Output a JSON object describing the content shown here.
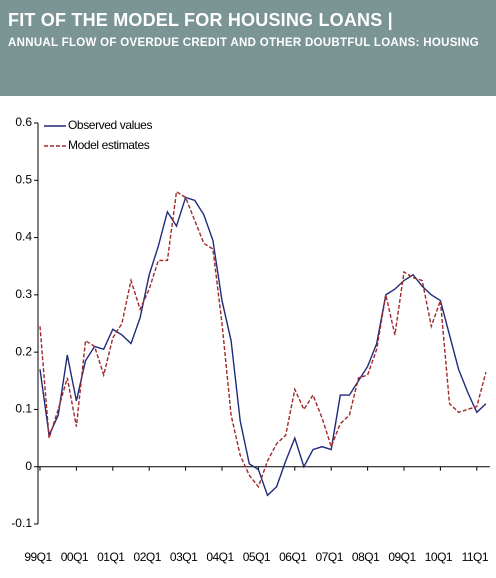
{
  "chart_data": {
    "type": "line",
    "title": "FIT OF THE MODEL FOR HOUSING LOANS |",
    "subtitle": "ANNUAL FLOW OF OVERDUE CREDIT AND OTHER DOUBTFUL LOANS: HOUSING",
    "categories": [
      "99Q1",
      null,
      null,
      null,
      "00Q1",
      null,
      null,
      null,
      "01Q1",
      null,
      null,
      null,
      "02Q1",
      null,
      null,
      null,
      "03Q1",
      null,
      null,
      null,
      "04Q1",
      null,
      null,
      null,
      "05Q1",
      null,
      null,
      null,
      "06Q1",
      null,
      null,
      null,
      "07Q1",
      null,
      null,
      null,
      "08Q1",
      null,
      null,
      null,
      "09Q1",
      null,
      null,
      null,
      "10Q1",
      null,
      null,
      null,
      "11Q1",
      null
    ],
    "series": [
      {
        "name": "Observed values",
        "color": "#1f2a7a",
        "dashed": false,
        "values": [
          0.17,
          0.055,
          0.09,
          0.195,
          0.115,
          0.185,
          0.21,
          0.205,
          0.24,
          0.23,
          0.215,
          0.26,
          0.335,
          0.385,
          0.445,
          0.42,
          0.47,
          0.465,
          0.44,
          0.395,
          0.29,
          0.22,
          0.08,
          0.005,
          -0.005,
          -0.05,
          -0.035,
          0.01,
          0.05,
          0.0,
          0.03,
          0.035,
          0.03,
          0.125,
          0.125,
          0.15,
          0.175,
          0.215,
          0.3,
          0.31,
          0.325,
          0.335,
          0.315,
          0.3,
          0.29,
          0.23,
          0.17,
          0.13,
          0.095,
          0.11
        ]
      },
      {
        "name": "Model estimates",
        "color": "#a0282a",
        "dashed": true,
        "values": [
          0.245,
          0.05,
          0.1,
          0.155,
          0.07,
          0.22,
          0.21,
          0.16,
          0.225,
          0.25,
          0.325,
          0.275,
          0.31,
          0.36,
          0.36,
          0.48,
          0.47,
          0.43,
          0.39,
          0.38,
          0.25,
          0.09,
          0.02,
          -0.015,
          -0.035,
          0.01,
          0.04,
          0.055,
          0.135,
          0.1,
          0.125,
          0.085,
          0.035,
          0.075,
          0.09,
          0.155,
          0.16,
          0.205,
          0.3,
          0.23,
          0.34,
          0.33,
          0.325,
          0.245,
          0.29,
          0.11,
          0.095,
          0.1,
          0.105,
          0.165
        ]
      }
    ],
    "ylim": [
      -0.1,
      0.6
    ],
    "yticks": [
      -0.1,
      0,
      0.1,
      0.2,
      0.3,
      0.4,
      0.5,
      0.6
    ],
    "grid": false,
    "legend": "upper left"
  }
}
